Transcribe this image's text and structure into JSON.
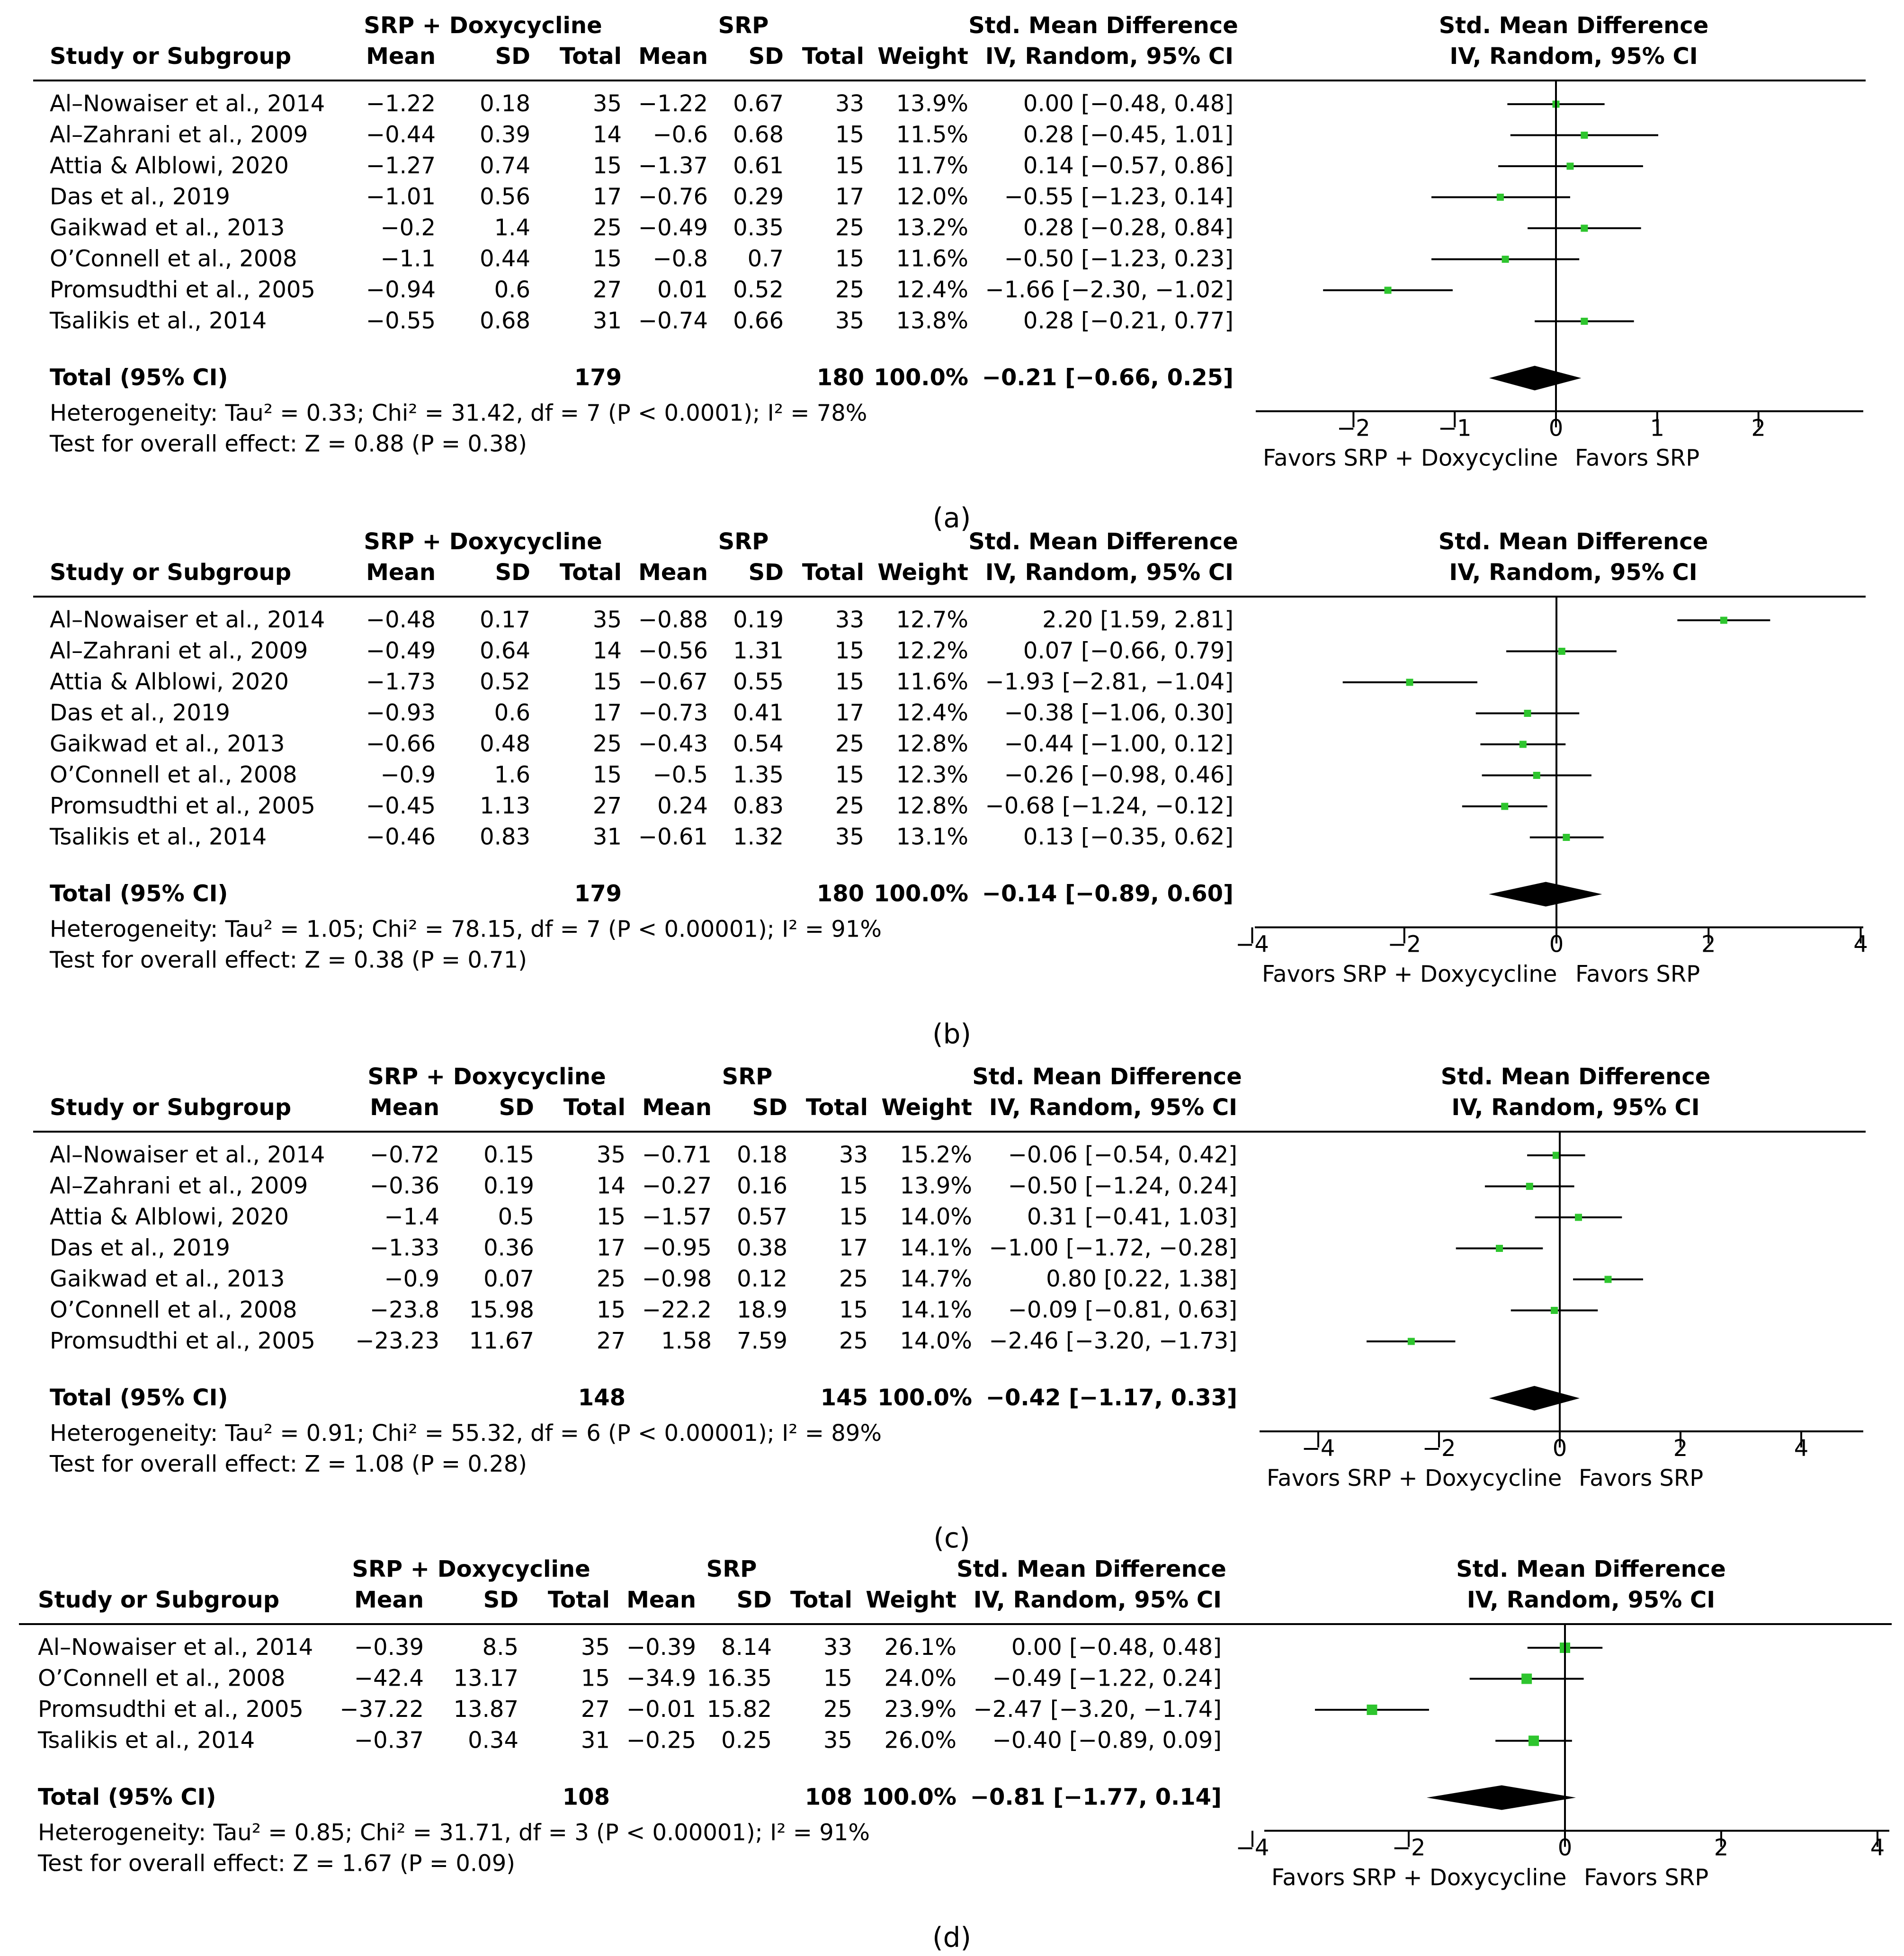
{
  "colors": {
    "marker": "#2ec52e",
    "ink": "#000000",
    "diamond": "#000000"
  },
  "headers": {
    "group1": "SRP + Doxycycline",
    "group2": "SRP",
    "effect": "Std. Mean Difference",
    "study": "Study or Subgroup",
    "mean": "Mean",
    "sd": "SD",
    "total": "Total",
    "weight": "Weight",
    "method": "IV, Random, 95% CI"
  },
  "favors": {
    "left": "Favors SRP + Doxycycline",
    "right": "Favors SRP"
  },
  "chart_data": [
    {
      "type": "forest",
      "panel_label": "(a)",
      "columns": [
        "Study or Subgroup",
        "Mean",
        "SD",
        "Total",
        "Mean",
        "SD",
        "Total",
        "Weight",
        "IV, Random, 95% CI"
      ],
      "studies": [
        {
          "study": "Al–Nowaiser et al., 2014",
          "m1": "−1.22",
          "sd1": "0.18",
          "n1": "35",
          "m2": "−1.22",
          "sd2": "0.67",
          "n2": "33",
          "weight": "13.9%",
          "ci_text": "0.00 [−0.48, 0.48]",
          "est": 0.0,
          "lo": -0.48,
          "hi": 0.48
        },
        {
          "study": "Al–Zahrani et al., 2009",
          "m1": "−0.44",
          "sd1": "0.39",
          "n1": "14",
          "m2": "−0.6",
          "sd2": "0.68",
          "n2": "15",
          "weight": "11.5%",
          "ci_text": "0.28 [−0.45, 1.01]",
          "est": 0.28,
          "lo": -0.45,
          "hi": 1.01
        },
        {
          "study": "Attia & Alblowi, 2020",
          "m1": "−1.27",
          "sd1": "0.74",
          "n1": "15",
          "m2": "−1.37",
          "sd2": "0.61",
          "n2": "15",
          "weight": "11.7%",
          "ci_text": "0.14 [−0.57, 0.86]",
          "est": 0.14,
          "lo": -0.57,
          "hi": 0.86
        },
        {
          "study": "Das et al., 2019",
          "m1": "−1.01",
          "sd1": "0.56",
          "n1": "17",
          "m2": "−0.76",
          "sd2": "0.29",
          "n2": "17",
          "weight": "12.0%",
          "ci_text": "−0.55 [−1.23, 0.14]",
          "est": -0.55,
          "lo": -1.23,
          "hi": 0.14
        },
        {
          "study": "Gaikwad et al., 2013",
          "m1": "−0.2",
          "sd1": "1.4",
          "n1": "25",
          "m2": "−0.49",
          "sd2": "0.35",
          "n2": "25",
          "weight": "13.2%",
          "ci_text": "0.28 [−0.28, 0.84]",
          "est": 0.28,
          "lo": -0.28,
          "hi": 0.84
        },
        {
          "study": "O’Connell et al., 2008",
          "m1": "−1.1",
          "sd1": "0.44",
          "n1": "15",
          "m2": "−0.8",
          "sd2": "0.7",
          "n2": "15",
          "weight": "11.6%",
          "ci_text": "−0.50 [−1.23, 0.23]",
          "est": -0.5,
          "lo": -1.23,
          "hi": 0.23
        },
        {
          "study": "Promsudthi et al., 2005",
          "m1": "−0.94",
          "sd1": "0.6",
          "n1": "27",
          "m2": "0.01",
          "sd2": "0.52",
          "n2": "25",
          "weight": "12.4%",
          "ci_text": "−1.66 [−2.30, −1.02]",
          "est": -1.66,
          "lo": -2.3,
          "hi": -1.02
        },
        {
          "study": "Tsalikis et al., 2014",
          "m1": "−0.55",
          "sd1": "0.68",
          "n1": "31",
          "m2": "−0.74",
          "sd2": "0.66",
          "n2": "35",
          "weight": "13.8%",
          "ci_text": "0.28 [−0.21, 0.77]",
          "est": 0.28,
          "lo": -0.21,
          "hi": 0.77
        }
      ],
      "total": {
        "label": "Total (95% CI)",
        "n1": "179",
        "n2": "180",
        "weight": "100.0%",
        "ci_text": "−0.21 [−0.66, 0.25]",
        "est": -0.21,
        "lo": -0.66,
        "hi": 0.25
      },
      "heterogeneity": "Heterogeneity: Tau² = 0.33; Chi² = 31.42, df = 7 (P < 0.0001); I² = 78%",
      "overall_test": "Test for overall effect: Z = 0.88 (P = 0.38)",
      "xlim": [
        -3,
        3
      ],
      "xticks": [
        -2,
        -1,
        0,
        1,
        2
      ],
      "xtick_labels": [
        "−2",
        "−1",
        "0",
        "1",
        "2"
      ]
    },
    {
      "type": "forest",
      "panel_label": "(b)",
      "columns": [
        "Study or Subgroup",
        "Mean",
        "SD",
        "Total",
        "Mean",
        "SD",
        "Total",
        "Weight",
        "IV, Random, 95% CI"
      ],
      "studies": [
        {
          "study": "Al–Nowaiser et al., 2014",
          "m1": "−0.48",
          "sd1": "0.17",
          "n1": "35",
          "m2": "−0.88",
          "sd2": "0.19",
          "n2": "33",
          "weight": "12.7%",
          "ci_text": "2.20 [1.59, 2.81]",
          "est": 2.2,
          "lo": 1.59,
          "hi": 2.81
        },
        {
          "study": "Al–Zahrani et al., 2009",
          "m1": "−0.49",
          "sd1": "0.64",
          "n1": "14",
          "m2": "−0.56",
          "sd2": "1.31",
          "n2": "15",
          "weight": "12.2%",
          "ci_text": "0.07 [−0.66, 0.79]",
          "est": 0.07,
          "lo": -0.66,
          "hi": 0.79
        },
        {
          "study": "Attia & Alblowi, 2020",
          "m1": "−1.73",
          "sd1": "0.52",
          "n1": "15",
          "m2": "−0.67",
          "sd2": "0.55",
          "n2": "15",
          "weight": "11.6%",
          "ci_text": "−1.93 [−2.81, −1.04]",
          "est": -1.93,
          "lo": -2.81,
          "hi": -1.04
        },
        {
          "study": "Das et al., 2019",
          "m1": "−0.93",
          "sd1": "0.6",
          "n1": "17",
          "m2": "−0.73",
          "sd2": "0.41",
          "n2": "17",
          "weight": "12.4%",
          "ci_text": "−0.38 [−1.06, 0.30]",
          "est": -0.38,
          "lo": -1.06,
          "hi": 0.3
        },
        {
          "study": "Gaikwad et al., 2013",
          "m1": "−0.66",
          "sd1": "0.48",
          "n1": "25",
          "m2": "−0.43",
          "sd2": "0.54",
          "n2": "25",
          "weight": "12.8%",
          "ci_text": "−0.44 [−1.00, 0.12]",
          "est": -0.44,
          "lo": -1.0,
          "hi": 0.12
        },
        {
          "study": "O’Connell et al., 2008",
          "m1": "−0.9",
          "sd1": "1.6",
          "n1": "15",
          "m2": "−0.5",
          "sd2": "1.35",
          "n2": "15",
          "weight": "12.3%",
          "ci_text": "−0.26 [−0.98, 0.46]",
          "est": -0.26,
          "lo": -0.98,
          "hi": 0.46
        },
        {
          "study": "Promsudthi et al., 2005",
          "m1": "−0.45",
          "sd1": "1.13",
          "n1": "27",
          "m2": "0.24",
          "sd2": "0.83",
          "n2": "25",
          "weight": "12.8%",
          "ci_text": "−0.68 [−1.24, −0.12]",
          "est": -0.68,
          "lo": -1.24,
          "hi": -0.12
        },
        {
          "study": "Tsalikis et al., 2014",
          "m1": "−0.46",
          "sd1": "0.83",
          "n1": "31",
          "m2": "−0.61",
          "sd2": "1.32",
          "n2": "35",
          "weight": "13.1%",
          "ci_text": "0.13 [−0.35, 0.62]",
          "est": 0.13,
          "lo": -0.35,
          "hi": 0.62
        }
      ],
      "total": {
        "label": "Total (95% CI)",
        "n1": "179",
        "n2": "180",
        "weight": "100.0%",
        "ci_text": "−0.14 [−0.89, 0.60]",
        "est": -0.14,
        "lo": -0.89,
        "hi": 0.6
      },
      "heterogeneity": "Heterogeneity: Tau² = 1.05; Chi² = 78.15, df = 7 (P < 0.00001); I² = 91%",
      "overall_test": "Test for overall effect: Z = 0.38 (P = 0.71)",
      "xlim": [
        -4,
        4
      ],
      "xticks": [
        -4,
        -2,
        0,
        2,
        4
      ],
      "xtick_labels": [
        "−4",
        "−2",
        "0",
        "2",
        "4"
      ]
    },
    {
      "type": "forest",
      "panel_label": "(c)",
      "columns": [
        "Study or Subgroup",
        "Mean",
        "SD",
        "Total",
        "Mean",
        "SD",
        "Total",
        "Weight",
        "IV, Random, 95% CI"
      ],
      "studies": [
        {
          "study": "Al–Nowaiser et al., 2014",
          "m1": "−0.72",
          "sd1": "0.15",
          "n1": "35",
          "m2": "−0.71",
          "sd2": "0.18",
          "n2": "33",
          "weight": "15.2%",
          "ci_text": "−0.06 [−0.54, 0.42]",
          "est": -0.06,
          "lo": -0.54,
          "hi": 0.42
        },
        {
          "study": "Al–Zahrani et al., 2009",
          "m1": "−0.36",
          "sd1": "0.19",
          "n1": "14",
          "m2": "−0.27",
          "sd2": "0.16",
          "n2": "15",
          "weight": "13.9%",
          "ci_text": "−0.50 [−1.24, 0.24]",
          "est": -0.5,
          "lo": -1.24,
          "hi": 0.24
        },
        {
          "study": "Attia & Alblowi, 2020",
          "m1": "−1.4",
          "sd1": "0.5",
          "n1": "15",
          "m2": "−1.57",
          "sd2": "0.57",
          "n2": "15",
          "weight": "14.0%",
          "ci_text": "0.31 [−0.41, 1.03]",
          "est": 0.31,
          "lo": -0.41,
          "hi": 1.03
        },
        {
          "study": "Das et al., 2019",
          "m1": "−1.33",
          "sd1": "0.36",
          "n1": "17",
          "m2": "−0.95",
          "sd2": "0.38",
          "n2": "17",
          "weight": "14.1%",
          "ci_text": "−1.00 [−1.72, −0.28]",
          "est": -1.0,
          "lo": -1.72,
          "hi": -0.28
        },
        {
          "study": "Gaikwad et al., 2013",
          "m1": "−0.9",
          "sd1": "0.07",
          "n1": "25",
          "m2": "−0.98",
          "sd2": "0.12",
          "n2": "25",
          "weight": "14.7%",
          "ci_text": "0.80 [0.22, 1.38]",
          "est": 0.8,
          "lo": 0.22,
          "hi": 1.38
        },
        {
          "study": "O’Connell et al., 2008",
          "m1": "−23.8",
          "sd1": "15.98",
          "n1": "15",
          "m2": "−22.2",
          "sd2": "18.9",
          "n2": "15",
          "weight": "14.1%",
          "ci_text": "−0.09 [−0.81, 0.63]",
          "est": -0.09,
          "lo": -0.81,
          "hi": 0.63
        },
        {
          "study": "Promsudthi et al., 2005",
          "m1": "−23.23",
          "sd1": "11.67",
          "n1": "27",
          "m2": "1.58",
          "sd2": "7.59",
          "n2": "25",
          "weight": "14.0%",
          "ci_text": "−2.46 [−3.20, −1.73]",
          "est": -2.46,
          "lo": -3.2,
          "hi": -1.73
        }
      ],
      "total": {
        "label": "Total (95% CI)",
        "n1": "148",
        "n2": "145",
        "weight": "100.0%",
        "ci_text": "−0.42 [−1.17, 0.33]",
        "est": -0.42,
        "lo": -1.17,
        "hi": 0.33
      },
      "heterogeneity": "Heterogeneity: Tau² = 0.91; Chi² = 55.32, df = 6 (P < 0.00001); I² = 89%",
      "overall_test": "Test for overall effect: Z = 1.08 (P = 0.28)",
      "xlim": [
        -5,
        5
      ],
      "xticks": [
        -4,
        -2,
        0,
        2,
        4
      ],
      "xtick_labels": [
        "−4",
        "−2",
        "0",
        "2",
        "4"
      ]
    },
    {
      "type": "forest",
      "panel_label": "(d)",
      "columns": [
        "Study or Subgroup",
        "Mean",
        "SD",
        "Total",
        "Mean",
        "SD",
        "Total",
        "Weight",
        "IV, Random, 95% CI"
      ],
      "studies": [
        {
          "study": "Al–Nowaiser et al., 2014",
          "m1": "−0.39",
          "sd1": "8.5",
          "n1": "35",
          "m2": "−0.39",
          "sd2": "8.14",
          "n2": "33",
          "weight": "26.1%",
          "ci_text": "0.00 [−0.48, 0.48]",
          "est": 0.0,
          "lo": -0.48,
          "hi": 0.48
        },
        {
          "study": "O’Connell et al., 2008",
          "m1": "−42.4",
          "sd1": "13.17",
          "n1": "15",
          "m2": "−34.9",
          "sd2": "16.35",
          "n2": "15",
          "weight": "24.0%",
          "ci_text": "−0.49 [−1.22, 0.24]",
          "est": -0.49,
          "lo": -1.22,
          "hi": 0.24
        },
        {
          "study": "Promsudthi et al., 2005",
          "m1": "−37.22",
          "sd1": "13.87",
          "n1": "27",
          "m2": "−0.01",
          "sd2": "15.82",
          "n2": "25",
          "weight": "23.9%",
          "ci_text": "−2.47 [−3.20, −1.74]",
          "est": -2.47,
          "lo": -3.2,
          "hi": -1.74
        },
        {
          "study": "Tsalikis et al., 2014",
          "m1": "−0.37",
          "sd1": "0.34",
          "n1": "31",
          "m2": "−0.25",
          "sd2": "0.25",
          "n2": "35",
          "weight": "26.0%",
          "ci_text": "−0.40 [−0.89, 0.09]",
          "est": -0.4,
          "lo": -0.89,
          "hi": 0.09
        }
      ],
      "total": {
        "label": "Total (95% CI)",
        "n1": "108",
        "n2": "108",
        "weight": "100.0%",
        "ci_text": "−0.81 [−1.77, 0.14]",
        "est": -0.81,
        "lo": -1.77,
        "hi": 0.14
      },
      "heterogeneity": "Heterogeneity: Tau² = 0.85; Chi² = 31.71, df = 3 (P < 0.00001); I² = 91%",
      "overall_test": "Test for overall effect: Z = 1.67 (P = 0.09)",
      "xlim": [
        -4,
        4
      ],
      "xticks": [
        -4,
        -2,
        0,
        2,
        4
      ],
      "xtick_labels": [
        "−4",
        "−2",
        "0",
        "2",
        "4"
      ]
    }
  ]
}
